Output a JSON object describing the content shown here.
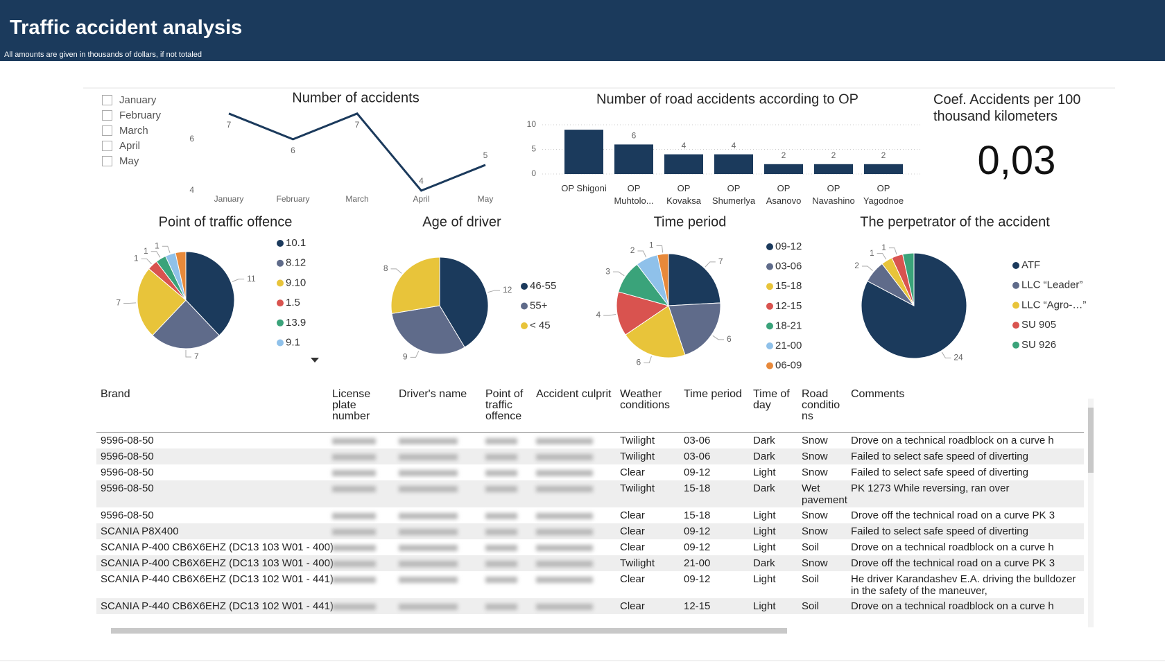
{
  "header": {
    "title": "Traffic accident analysis",
    "subtitle": "All amounts are given in thousands of dollars, if not totaled"
  },
  "filter": {
    "items": [
      "January",
      "February",
      "March",
      "April",
      "May"
    ]
  },
  "kpi": {
    "title": "Coef. Accidents per 100 thousand kilometers",
    "value": "0,03"
  },
  "chart_data": [
    {
      "type": "line",
      "title": "Number of accidents",
      "categories": [
        "January",
        "February",
        "March",
        "April",
        "May"
      ],
      "values": [
        7,
        6,
        7,
        4,
        5
      ],
      "color": "#1b3a5c",
      "ylim": [
        4,
        7.4
      ],
      "yticks": [
        4,
        6
      ]
    },
    {
      "type": "bar",
      "title": "Number of road accidents according to OP",
      "categories": [
        "OP Shigoni",
        "OP Muhtolo...",
        "OP Kovaksa",
        "OP Shumerlya",
        "OP Asanovo",
        "OP Navashino",
        "OP Yagodnoe"
      ],
      "values": [
        9,
        6,
        4,
        4,
        2,
        2,
        2
      ],
      "value_labels": [
        null,
        "6",
        "4",
        "4",
        "2",
        "2",
        "2"
      ],
      "color": "#1b3a5c",
      "ylim": [
        0,
        10
      ],
      "yticks": [
        0,
        5,
        10
      ],
      "grid": true
    },
    {
      "type": "pie",
      "title": "Point of traffic offence",
      "names": [
        "10.1",
        "8.12",
        "9.10",
        "1.5",
        "13.9",
        "9.1",
        null
      ],
      "values": [
        11,
        7,
        7,
        1,
        1,
        1,
        1
      ],
      "value_labels": [
        "11",
        "7",
        "7",
        "1",
        "1",
        "1",
        null
      ],
      "colors": [
        "#1b3a5c",
        "#5f6b8a",
        "#e8c43a",
        "#d9534f",
        "#3aa37a",
        "#8fc1ea",
        "#e8893a"
      ]
    },
    {
      "type": "pie",
      "title": "Age of driver",
      "names": [
        "46-55",
        "55+",
        "< 45"
      ],
      "values": [
        12,
        9,
        8
      ],
      "value_labels": [
        "12",
        "9",
        "8"
      ],
      "colors": [
        "#1b3a5c",
        "#5f6b8a",
        "#e8c43a"
      ]
    },
    {
      "type": "pie",
      "title": "Time period",
      "names": [
        "09-12",
        "03-06",
        "15-18",
        "12-15",
        "18-21",
        "21-00",
        "06-09"
      ],
      "values": [
        7,
        6,
        6,
        4,
        3,
        2,
        1
      ],
      "value_labels": [
        "7",
        "6",
        "6",
        "4",
        "3",
        "2",
        "1"
      ],
      "colors": [
        "#1b3a5c",
        "#5f6b8a",
        "#e8c43a",
        "#d9534f",
        "#3aa37a",
        "#8fc1ea",
        "#e8893a"
      ]
    },
    {
      "type": "pie",
      "title": "The perpetrator of the accident",
      "names": [
        "ATF",
        "LLC “Leader”",
        "LLC “Agro-…”",
        "SU 905",
        "SU 926"
      ],
      "values": [
        24,
        2,
        1,
        1,
        1
      ],
      "value_labels": [
        "24",
        "2",
        "1",
        "1",
        null
      ],
      "colors": [
        "#1b3a5c",
        "#5f6b8a",
        "#e8c43a",
        "#d9534f",
        "#3aa37a"
      ]
    }
  ],
  "table": {
    "columns": [
      "Brand",
      "License plate number",
      "Driver's name",
      "Point of traffic offence",
      "Accident culprit",
      "Weather conditions",
      "Time period",
      "Time of day",
      "Road conditions",
      "Comments"
    ],
    "rows": [
      [
        "9596-08-50",
        null,
        null,
        null,
        null,
        "Twilight",
        "03-06",
        "Dark",
        "Snow",
        "Drove on a technical roadblock on a curve h"
      ],
      [
        "9596-08-50",
        null,
        null,
        null,
        null,
        "Twilight",
        "03-06",
        "Dark",
        "Snow",
        "Failed to select safe speed of diverting"
      ],
      [
        "9596-08-50",
        null,
        null,
        null,
        null,
        "Clear",
        "09-12",
        "Light",
        "Snow",
        "Failed to select safe speed of diverting"
      ],
      [
        "9596-08-50",
        null,
        null,
        null,
        null,
        "Twilight",
        "15-18",
        "Dark",
        "Wet pavement",
        "PK 1273 While reversing, ran over"
      ],
      [
        "9596-08-50",
        null,
        null,
        null,
        null,
        "Clear",
        "15-18",
        "Light",
        "Snow",
        "Drove off the technical road on a curve PK 3"
      ],
      [
        "SCANIA P8X400",
        null,
        null,
        null,
        null,
        "Clear",
        "09-12",
        "Light",
        "Snow",
        "Failed to select safe speed of diverting"
      ],
      [
        "SCANIA P-400 CB6X6EHZ (DC13 103 W01 - 400)",
        null,
        null,
        null,
        null,
        "Clear",
        "09-12",
        "Light",
        "Soil",
        "Drove on a technical roadblock on a curve h"
      ],
      [
        "SCANIA P-400 CB6X6EHZ (DC13 103 W01 - 400)",
        null,
        null,
        null,
        null,
        "Twilight",
        "21-00",
        "Dark",
        "Snow",
        "Drove off the technical road on a curve PK 3"
      ],
      [
        "SCANIA P-440 CB6X6EHZ (DC13 102 W01 - 441)",
        null,
        null,
        null,
        null,
        "Clear",
        "09-12",
        "Light",
        "Soil",
        "He driver Karandashev E.A. driving the bulldozer in the safety of the maneuver,"
      ],
      [
        "SCANIA P-440 CB6X6EHZ (DC13 102 W01 - 441)",
        null,
        null,
        null,
        null,
        "Clear",
        "12-15",
        "Light",
        "Soil",
        "Drove on a technical roadblock on a curve h"
      ]
    ]
  }
}
